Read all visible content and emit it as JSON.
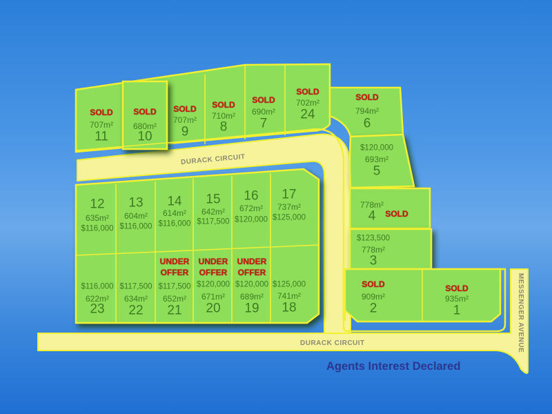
{
  "roads": {
    "upper": "DURACK CIRCUIT",
    "lower": "DURACK CIRCUIT",
    "side": "MESSENGER AVENUE"
  },
  "footer": "Agents Interest Declared",
  "colors": {
    "lot": "#8ede5a",
    "road": "#f7f39a",
    "border": "#f2f032",
    "status": "#c81c14",
    "text": "#3e7b22",
    "footer": "#2b3690"
  },
  "lots": [
    {
      "number": "1",
      "status": "SOLD",
      "area": "935m²",
      "price": null
    },
    {
      "number": "2",
      "status": "SOLD",
      "area": "909m²",
      "price": null
    },
    {
      "number": "3",
      "status": null,
      "area": "778m²",
      "price": "$123,500"
    },
    {
      "number": "4",
      "status": "SOLD",
      "area": "778m²",
      "price": null
    },
    {
      "number": "5",
      "status": null,
      "area": "693m²",
      "price": "$120,000"
    },
    {
      "number": "6",
      "status": "SOLD",
      "area": "794m²",
      "price": null
    },
    {
      "number": "7",
      "status": "SOLD",
      "area": "690m²",
      "price": null
    },
    {
      "number": "8",
      "status": "SOLD",
      "area": "710m²",
      "price": null
    },
    {
      "number": "9",
      "status": "SOLD",
      "area": "707m²",
      "price": null
    },
    {
      "number": "10",
      "status": "SOLD",
      "area": "680m²",
      "price": null
    },
    {
      "number": "11",
      "status": "SOLD",
      "area": "707m²",
      "price": null
    },
    {
      "number": "12",
      "status": null,
      "area": "635m²",
      "price": "$116,000"
    },
    {
      "number": "13",
      "status": null,
      "area": "604m²",
      "price": "$116,000"
    },
    {
      "number": "14",
      "status": null,
      "area": "614m²",
      "price": "$116,000"
    },
    {
      "number": "15",
      "status": null,
      "area": "642m²",
      "price": "$117,500"
    },
    {
      "number": "16",
      "status": null,
      "area": "672m²",
      "price": "$120,000"
    },
    {
      "number": "17",
      "status": null,
      "area": "737m²",
      "price": "$125,000"
    },
    {
      "number": "18",
      "status": null,
      "area": "741m²",
      "price": "$125,000"
    },
    {
      "number": "19",
      "status": "UNDER OFFER",
      "area": "689m²",
      "price": "$120,000"
    },
    {
      "number": "20",
      "status": "UNDER OFFER",
      "area": "671m²",
      "price": "$120,000"
    },
    {
      "number": "21",
      "status": "UNDER OFFER",
      "area": "652m²",
      "price": "$117,500"
    },
    {
      "number": "22",
      "status": null,
      "area": "634m²",
      "price": "$117,500"
    },
    {
      "number": "23",
      "status": null,
      "area": "622m²",
      "price": "$116,000"
    },
    {
      "number": "24",
      "status": "SOLD",
      "area": "702m²",
      "price": null
    }
  ]
}
